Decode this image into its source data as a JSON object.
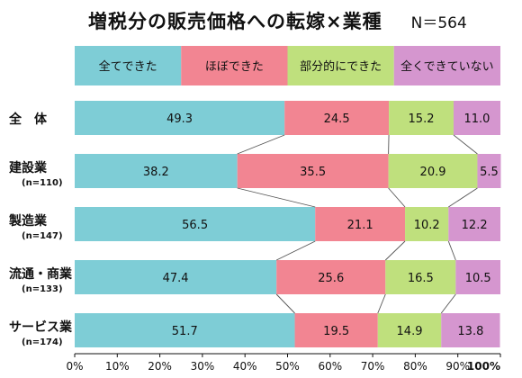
{
  "chart_data": {
    "type": "bar",
    "orientation": "horizontal",
    "stacked": true,
    "title": "増税分の販売価格への転嫁×業種",
    "sample_size": "N＝564",
    "legend": {
      "placement": "top",
      "entries": [
        "全てできた",
        "ほぼできた",
        "部分的にできた",
        "全くできていない"
      ]
    },
    "categories": [
      {
        "label": "全　体",
        "n": ""
      },
      {
        "label": "建設業",
        "n": "(n=110)"
      },
      {
        "label": "製造業",
        "n": "(n=147)"
      },
      {
        "label": "流通・商業",
        "n": "(n=133)"
      },
      {
        "label": "サービス業",
        "n": "(n=174)"
      }
    ],
    "series": [
      {
        "name": "全てできた",
        "color": "#7ecdd6",
        "values": [
          49.3,
          38.2,
          56.5,
          47.4,
          51.7
        ]
      },
      {
        "name": "ほぼできた",
        "color": "#f28592",
        "values": [
          24.5,
          35.5,
          21.1,
          25.6,
          19.5
        ]
      },
      {
        "name": "部分的にできた",
        "color": "#bfe07d",
        "values": [
          15.2,
          20.9,
          10.2,
          16.5,
          14.9
        ]
      },
      {
        "name": "全くできていない",
        "color": "#d596cf",
        "values": [
          11.0,
          5.5,
          12.2,
          10.5,
          13.8
        ]
      }
    ],
    "value_labels": [
      [
        "49.3",
        "24.5",
        "15.2",
        "11.0"
      ],
      [
        "38.2",
        "35.5",
        "20.9",
        "5.5"
      ],
      [
        "56.5",
        "21.1",
        "10.2",
        "12.2"
      ],
      [
        "47.4",
        "25.6",
        "16.5",
        "10.5"
      ],
      [
        "51.7",
        "19.5",
        "14.9",
        "13.8"
      ]
    ],
    "xlim": [
      0,
      100
    ],
    "xticks": [
      "0%",
      "10%",
      "20%",
      "30%",
      "40%",
      "50%",
      "60%",
      "70%",
      "80%",
      "90%",
      "100%"
    ],
    "grid": false,
    "connector_lines": true
  }
}
